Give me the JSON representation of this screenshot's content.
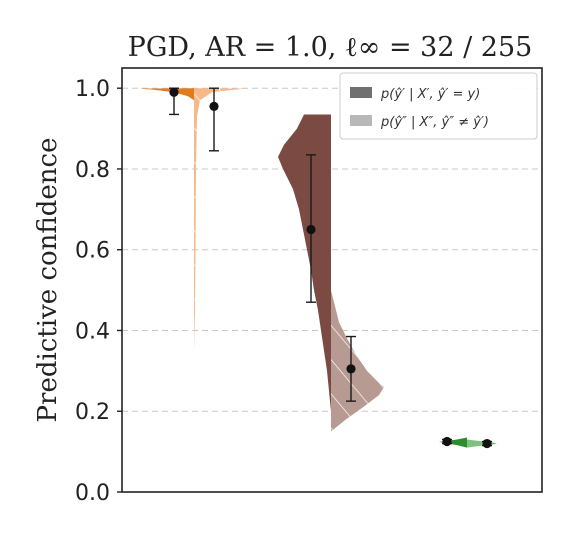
{
  "chart_data": {
    "type": "violin",
    "title": "PGD, AR = 1.0, ℓ∞ = 32 / 255",
    "ylabel": "Predictive confidence",
    "xlabel": "",
    "ylim": [
      0,
      1.05
    ],
    "yticks": [
      "0.0",
      "0.2",
      "0.4",
      "0.6",
      "0.8",
      "1.0"
    ],
    "grid": true,
    "legend_position": "top-right",
    "legend": [
      {
        "label": "p(ŷ′ | X′, ŷ′ = y)",
        "color": "#707070"
      },
      {
        "label": "p(ŷ″ | X″, ŷ″ ≠ ŷ′)",
        "color": "#b8b8b8"
      }
    ],
    "groups": [
      {
        "color_dark": "#e07b20",
        "color_light": "#f5b98a",
        "left": {
          "mean": 0.99,
          "err_low": 0.935,
          "err_high": 1.0,
          "range": [
            0.97,
            1.0
          ]
        },
        "right": {
          "mean": 0.955,
          "err_low": 0.845,
          "err_high": 1.0,
          "range": [
            0.35,
            1.0
          ]
        }
      },
      {
        "color_dark": "#7b4a42",
        "color_light": "#b79a92",
        "left": {
          "mean": 0.65,
          "err_low": 0.47,
          "err_high": 0.835,
          "range": [
            0.2,
            0.935
          ]
        },
        "right": {
          "mean": 0.305,
          "err_low": 0.225,
          "err_high": 0.385,
          "range": [
            0.15,
            0.5
          ]
        }
      },
      {
        "color_dark": "#2e8b2e",
        "color_light": "#7fc27f",
        "left": {
          "mean": 0.125,
          "err_low": 0.12,
          "err_high": 0.13,
          "range": [
            0.11,
            0.135
          ]
        },
        "right": {
          "mean": 0.12,
          "err_low": 0.115,
          "err_high": 0.125,
          "range": [
            0.11,
            0.13
          ]
        }
      }
    ]
  }
}
